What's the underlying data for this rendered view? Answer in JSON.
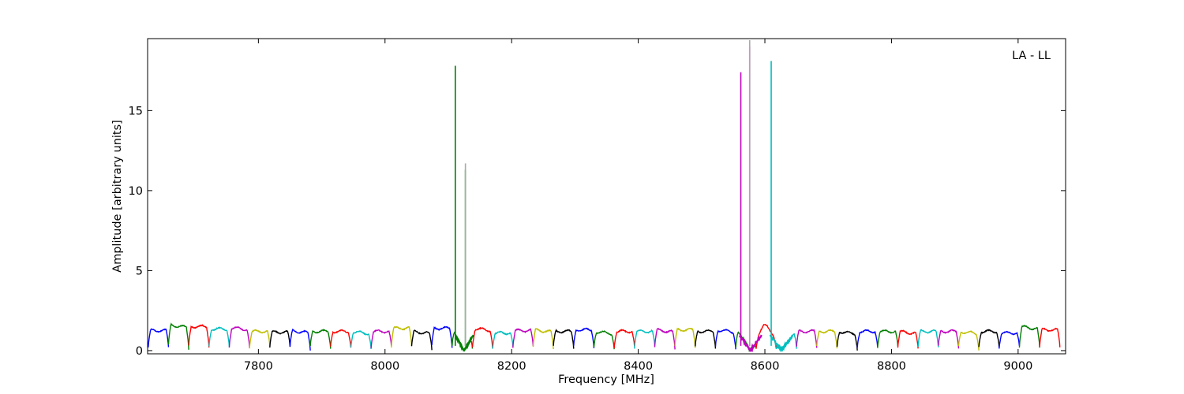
{
  "chart_data": {
    "type": "line",
    "title": "",
    "xlabel": "Frequency [MHz]",
    "ylabel": "Amplitude [arbitrary units]",
    "annotation": "LA - LL",
    "legend": "none",
    "grid": false,
    "xlim": [
      7625,
      9075
    ],
    "ylim": [
      -0.2,
      19.5
    ],
    "xticks": [
      7800,
      8000,
      8200,
      8400,
      8600,
      8800,
      9000
    ],
    "yticks": [
      0,
      5,
      10,
      15
    ],
    "channel_width_mhz": 32,
    "channel_start_mhz": 7626,
    "channel_count": 45,
    "color_cycle": [
      "#0000ff",
      "#007f00",
      "#ff0000",
      "#00bfbf",
      "#bf00bf",
      "#bfbf00",
      "#000000"
    ],
    "channel_peak_amplitudes": [
      1.25,
      1.6,
      1.5,
      1.35,
      1.45,
      1.2,
      1.15,
      1.25,
      1.2,
      1.2,
      1.2,
      1.2,
      1.4,
      1.2,
      1.4,
      1.4,
      1.4,
      1.1,
      1.25,
      1.3,
      1.2,
      1.3,
      1.2,
      1.2,
      1.2,
      1.3,
      1.3,
      1.2,
      1.3,
      1.4,
      1.6,
      1.2,
      1.2,
      1.2,
      1.2,
      1.2,
      1.2,
      1.2,
      1.2,
      1.2,
      1.2,
      1.2,
      1.1,
      1.5,
      1.3
    ],
    "spikes": [
      {
        "x": 8111,
        "y": 17.8,
        "color": "#007f00"
      },
      {
        "x": 8127,
        "y": 11.3,
        "color": "#007f00"
      },
      {
        "x": 8127,
        "y": 11.7,
        "color": "#aaaaaa"
      },
      {
        "x": 8562,
        "y": 17.4,
        "color": "#bf00bf"
      },
      {
        "x": 8576,
        "y": 19.0,
        "color": "#bf00bf"
      },
      {
        "x": 8576,
        "y": 19.4,
        "color": "#aaaaaa"
      },
      {
        "x": 8610,
        "y": 18.1,
        "color": "#00bfbf"
      }
    ],
    "notches": [
      {
        "center": 8125,
        "width": 18,
        "depth_to": 0.0,
        "color": "#007f00"
      },
      {
        "center": 8577,
        "width": 22,
        "depth_to": 0.0,
        "color": "#bf00bf"
      },
      {
        "center": 8626,
        "width": 22,
        "depth_to": 0.0,
        "color": "#00bfbf"
      }
    ]
  }
}
